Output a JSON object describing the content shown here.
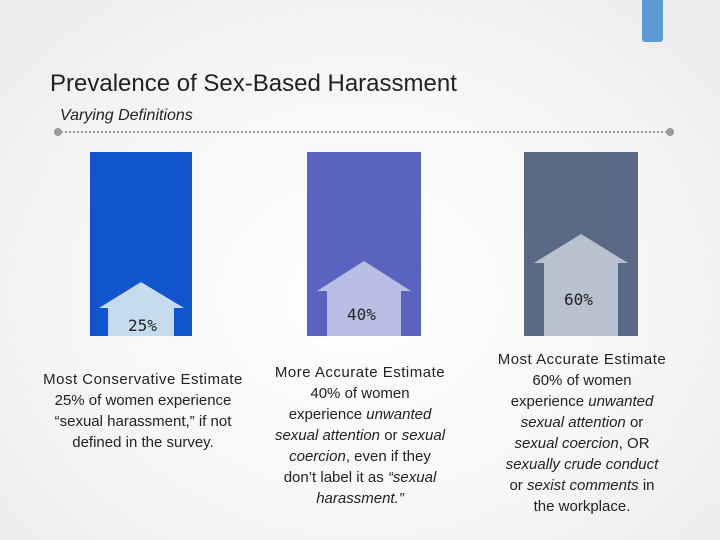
{
  "title": "Prevalence of Sex-Based Harassment",
  "subtitle": "Varying Definitions",
  "colors": {
    "bar1": "#1155cc",
    "bar2": "#5b63c1",
    "bar3": "#5a6a86",
    "house1": "#c5dcf0",
    "house2": "#b9bfe4",
    "house3": "#b9c0cf",
    "accent_tab": "#5b9bd5"
  },
  "estimates": [
    {
      "percent_label": "25%",
      "value": 25,
      "heading": "Most Conservative Estimate",
      "line1": "25% of women experience",
      "line2": "“sexual harassment,” if not",
      "line3": "defined in the survey."
    },
    {
      "percent_label": "40%",
      "value": 40,
      "heading": "More Accurate Estimate",
      "line1": "40% of women",
      "line2": "experience",
      "line2_em": "unwanted",
      "line3_em": "sexual attention",
      "line3": "or",
      "line3_em2": "sexual",
      "line4_em": "coercion",
      "line4": ", even if they",
      "line5": "don’t label it as",
      "line5_em": "“sexual",
      "line6_em": "harassment.”"
    },
    {
      "percent_label": "60%",
      "value": 60,
      "heading": "Most Accurate Estimate",
      "line1": "60% of women",
      "line2": "experience",
      "line2_em": "unwanted",
      "line3_em": "sexual attention",
      "line3": "or",
      "line4_em": "sexual coercion",
      "line4": ", OR",
      "line5_em": "sexually crude conduct",
      "line6": "or",
      "line6_em": "sexist comments",
      "line6b": "in",
      "line7": "the workplace."
    }
  ]
}
